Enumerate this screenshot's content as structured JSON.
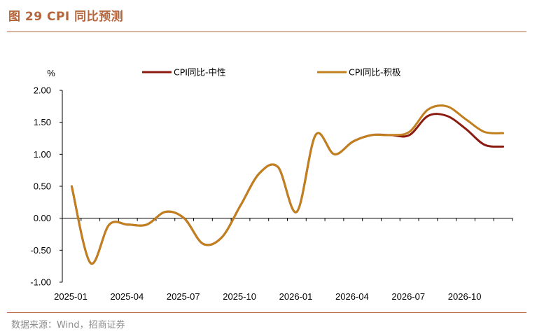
{
  "figure": {
    "title": "图 29 CPI 同比预测",
    "source": "数据来源：Wind，招商证券"
  },
  "colors": {
    "accent": "#b5653c",
    "neutral_series": "#8b1a10",
    "positive_series": "#c17f1d"
  },
  "chart_data": {
    "type": "line",
    "title": "",
    "ylabel": "%",
    "xlabel": "",
    "ylim": [
      -1.0,
      2.0
    ],
    "yticks": [
      "2.00",
      "1.50",
      "1.00",
      "0.50",
      "0.00",
      "-0.50",
      "-1.00"
    ],
    "xtick_labels": [
      "2025-01",
      "2025-04",
      "2025-07",
      "2025-10",
      "2026-01",
      "2026-04",
      "2026-07",
      "2026-10"
    ],
    "x": [
      "2025-01",
      "2025-02",
      "2025-03",
      "2025-04",
      "2025-05",
      "2025-06",
      "2025-07",
      "2025-08",
      "2025-09",
      "2025-10",
      "2025-11",
      "2025-12",
      "2026-01",
      "2026-02",
      "2026-03",
      "2026-04",
      "2026-05",
      "2026-06",
      "2026-07",
      "2026-08",
      "2026-09",
      "2026-10",
      "2026-11",
      "2026-12"
    ],
    "legend_position": "top",
    "series": [
      {
        "name": "CPI同比-中性",
        "color": "#8b1a10",
        "values": [
          0.5,
          -0.7,
          -0.1,
          -0.1,
          -0.1,
          0.1,
          0.0,
          -0.4,
          -0.3,
          0.2,
          0.7,
          0.8,
          0.1,
          1.3,
          1.0,
          1.2,
          1.3,
          1.3,
          1.3,
          1.6,
          1.6,
          1.4,
          1.15,
          1.12
        ]
      },
      {
        "name": "CPI同比-积极",
        "color": "#c17f1d",
        "values": [
          0.5,
          -0.7,
          -0.1,
          -0.1,
          -0.1,
          0.1,
          0.0,
          -0.4,
          -0.3,
          0.2,
          0.7,
          0.8,
          0.1,
          1.3,
          1.0,
          1.2,
          1.3,
          1.3,
          1.35,
          1.7,
          1.75,
          1.55,
          1.35,
          1.33
        ]
      }
    ]
  }
}
